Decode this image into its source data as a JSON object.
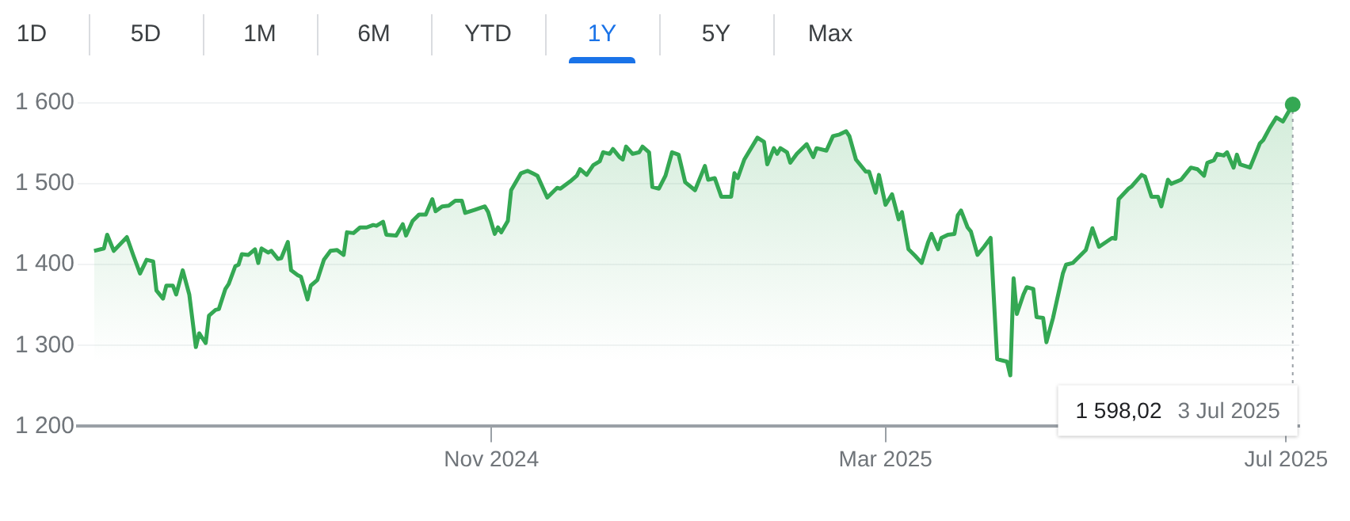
{
  "chart_data": {
    "type": "area",
    "annotations": [
      "1D",
      "5D",
      "1M",
      "6M",
      "YTD",
      "1Y",
      "5Y",
      "Max",
      "1 598,02",
      "3 Jul 2025"
    ],
    "x": [
      "2024-07-03",
      "2024-07-06",
      "2024-07-07",
      "2024-07-09",
      "2024-07-13",
      "2024-07-15",
      "2024-07-17",
      "2024-07-19",
      "2024-07-21",
      "2024-07-22",
      "2024-07-24",
      "2024-07-25",
      "2024-07-27",
      "2024-07-28",
      "2024-07-30",
      "2024-08-01",
      "2024-08-03",
      "2024-08-04",
      "2024-08-06",
      "2024-08-07",
      "2024-08-09",
      "2024-08-10",
      "2024-08-12",
      "2024-08-13",
      "2024-08-15",
      "2024-08-16",
      "2024-08-17",
      "2024-08-19",
      "2024-08-21",
      "2024-08-22",
      "2024-08-23",
      "2024-08-25",
      "2024-08-26",
      "2024-08-28",
      "2024-08-29",
      "2024-08-31",
      "2024-09-01",
      "2024-09-03",
      "2024-09-04",
      "2024-09-06",
      "2024-09-07",
      "2024-09-09",
      "2024-09-11",
      "2024-09-13",
      "2024-09-15",
      "2024-09-17",
      "2024-09-18",
      "2024-09-20",
      "2024-09-22",
      "2024-09-24",
      "2024-09-26",
      "2024-09-27",
      "2024-09-29",
      "2024-09-30",
      "2024-10-03",
      "2024-10-05",
      "2024-10-06",
      "2024-10-08",
      "2024-10-10",
      "2024-10-12",
      "2024-10-14",
      "2024-10-15",
      "2024-10-17",
      "2024-10-19",
      "2024-10-21",
      "2024-10-23",
      "2024-10-24",
      "2024-10-27",
      "2024-10-30",
      "2024-10-31",
      "2024-11-02",
      "2024-11-03",
      "2024-11-04",
      "2024-11-06",
      "2024-11-07",
      "2024-11-10",
      "2024-11-12",
      "2024-11-14",
      "2024-11-15",
      "2024-11-18",
      "2024-11-21",
      "2024-11-22",
      "2024-11-25",
      "2024-11-27",
      "2024-11-28",
      "2024-11-30",
      "2024-12-02",
      "2024-12-04",
      "2024-12-05",
      "2024-12-07",
      "2024-12-08",
      "2024-12-10",
      "2024-12-11",
      "2024-12-12",
      "2024-12-14",
      "2024-12-16",
      "2024-12-17",
      "2024-12-19",
      "2024-12-20",
      "2024-12-22",
      "2024-12-24",
      "2024-12-26",
      "2024-12-28",
      "2024-12-30",
      "2025-01-02",
      "2025-01-05",
      "2025-01-06",
      "2025-01-08",
      "2025-01-10",
      "2025-01-13",
      "2025-01-14",
      "2025-01-15",
      "2025-01-17",
      "2025-01-21",
      "2025-01-23",
      "2025-01-24",
      "2025-01-26",
      "2025-01-27",
      "2025-01-28",
      "2025-01-30",
      "2025-01-31",
      "2025-02-02",
      "2025-02-05",
      "2025-02-07",
      "2025-02-08",
      "2025-02-11",
      "2025-02-13",
      "2025-02-15",
      "2025-02-17",
      "2025-02-18",
      "2025-02-20",
      "2025-02-23",
      "2025-02-24",
      "2025-02-26",
      "2025-02-27",
      "2025-03-01",
      "2025-03-03",
      "2025-03-05",
      "2025-03-06",
      "2025-03-08",
      "2025-03-10",
      "2025-03-12",
      "2025-03-14",
      "2025-03-15",
      "2025-03-17",
      "2025-03-18",
      "2025-03-20",
      "2025-03-22",
      "2025-03-23",
      "2025-03-24",
      "2025-03-26",
      "2025-03-27",
      "2025-03-29",
      "2025-03-31",
      "2025-04-02",
      "2025-04-04",
      "2025-04-07",
      "2025-04-08",
      "2025-04-09",
      "2025-04-10",
      "2025-04-12",
      "2025-04-13",
      "2025-04-15",
      "2025-04-16",
      "2025-04-18",
      "2025-04-19",
      "2025-04-21",
      "2025-04-24",
      "2025-04-25",
      "2025-04-27",
      "2025-04-29",
      "2025-05-01",
      "2025-05-03",
      "2025-05-05",
      "2025-05-09",
      "2025-05-10",
      "2025-05-11",
      "2025-05-14",
      "2025-05-15",
      "2025-05-18",
      "2025-05-19",
      "2025-05-21",
      "2025-05-23",
      "2025-05-24",
      "2025-05-26",
      "2025-05-27",
      "2025-05-30",
      "2025-05-31",
      "2025-06-02",
      "2025-06-04",
      "2025-06-06",
      "2025-06-07",
      "2025-06-09",
      "2025-06-10",
      "2025-06-12",
      "2025-06-13",
      "2025-06-15",
      "2025-06-16",
      "2025-06-17",
      "2025-06-20",
      "2025-06-23",
      "2025-06-24",
      "2025-06-26",
      "2025-06-28",
      "2025-06-30",
      "2025-07-03"
    ],
    "series": [
      {
        "color": "#34a853",
        "values": [
          1417,
          1420,
          1437,
          1417,
          1434,
          1411,
          1389,
          1406,
          1404,
          1368,
          1358,
          1374,
          1374,
          1363,
          1393,
          1363,
          1298,
          1315,
          1303,
          1337,
          1344,
          1345,
          1370,
          1376,
          1398,
          1400,
          1413,
          1412,
          1419,
          1402,
          1420,
          1415,
          1417,
          1407,
          1408,
          1428,
          1393,
          1387,
          1385,
          1357,
          1374,
          1381,
          1406,
          1417,
          1418,
          1412,
          1440,
          1439,
          1446,
          1446,
          1449,
          1448,
          1453,
          1437,
          1436,
          1450,
          1436,
          1454,
          1462,
          1462,
          1481,
          1466,
          1472,
          1473,
          1479,
          1479,
          1464,
          1468,
          1472,
          1465,
          1438,
          1446,
          1440,
          1454,
          1492,
          1513,
          1516,
          1512,
          1510,
          1483,
          1495,
          1494,
          1503,
          1510,
          1518,
          1511,
          1523,
          1528,
          1539,
          1537,
          1543,
          1533,
          1530,
          1546,
          1537,
          1539,
          1546,
          1539,
          1496,
          1494,
          1510,
          1539,
          1536,
          1502,
          1492,
          1522,
          1505,
          1507,
          1484,
          1484,
          1513,
          1507,
          1530,
          1557,
          1552,
          1524,
          1544,
          1537,
          1544,
          1539,
          1526,
          1537,
          1549,
          1533,
          1544,
          1541,
          1559,
          1561,
          1565,
          1559,
          1530,
          1515,
          1515,
          1489,
          1511,
          1474,
          1487,
          1456,
          1465,
          1419,
          1411,
          1402,
          1428,
          1438,
          1419,
          1433,
          1437,
          1438,
          1461,
          1467,
          1446,
          1441,
          1412,
          1422,
          1433,
          1283,
          1280,
          1263,
          1383,
          1339,
          1363,
          1372,
          1370,
          1335,
          1334,
          1304,
          1334,
          1389,
          1400,
          1402,
          1410,
          1418,
          1445,
          1422,
          1433,
          1432,
          1481,
          1494,
          1497,
          1511,
          1509,
          1484,
          1484,
          1472,
          1505,
          1500,
          1505,
          1510,
          1520,
          1518,
          1510,
          1526,
          1529,
          1537,
          1535,
          1539,
          1520,
          1536,
          1524,
          1520,
          1550,
          1554,
          1569,
          1582,
          1577,
          1598.02
        ]
      }
    ],
    "xlim": [
      "2024-06-28",
      "2025-07-05"
    ],
    "xticks": [
      {
        "value": "2024-11-01",
        "label": "Nov 2024"
      },
      {
        "value": "2025-03-01",
        "label": "Mar 2025"
      },
      {
        "value": "2025-07-01",
        "label": "Jul 2025"
      }
    ],
    "ylim": [
      1200,
      1600
    ],
    "yticks": [
      {
        "value": 1200,
        "label": "1 200"
      },
      {
        "value": 1300,
        "label": "1 300"
      },
      {
        "value": 1400,
        "label": "1 400"
      },
      {
        "value": 1500,
        "label": "1 500"
      },
      {
        "value": 1600,
        "label": "1 600"
      }
    ],
    "ref_lines": [
      {
        "axis": "x",
        "value": "2025-07-03",
        "color": "#9aa0a6",
        "line_style": "dotted"
      }
    ],
    "grid": "y",
    "legend": false
  }
}
